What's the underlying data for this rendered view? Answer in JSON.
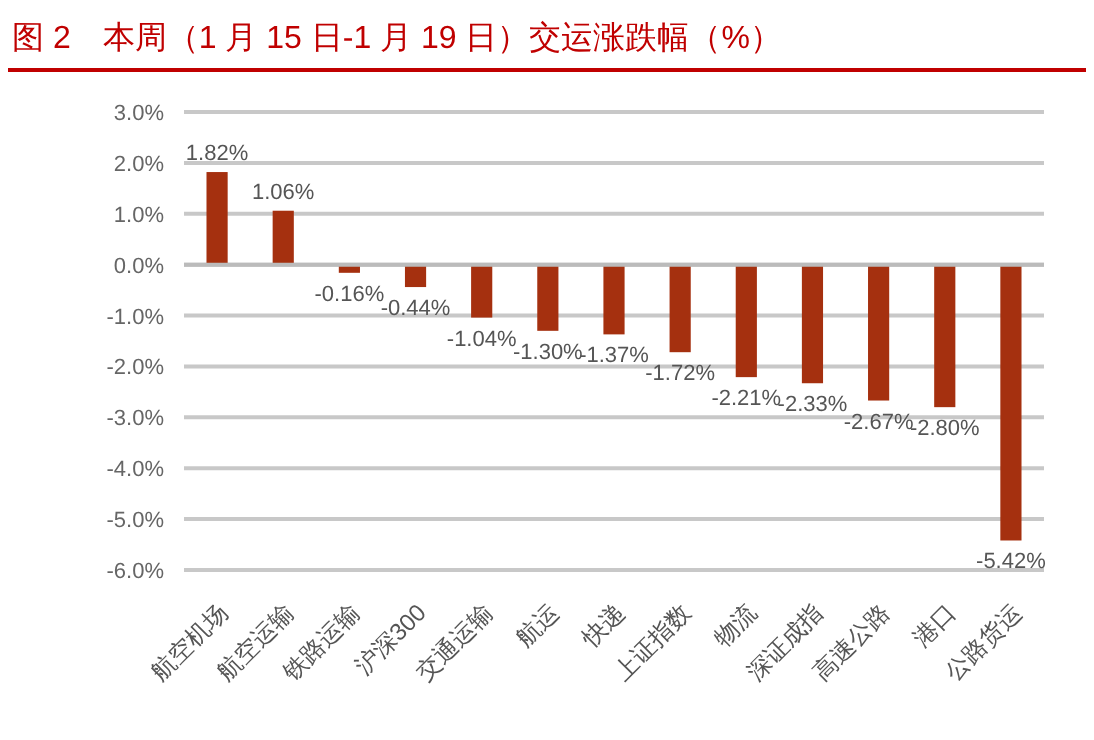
{
  "chart_data": {
    "type": "bar",
    "title": "图 2　本周（1 月 15 日-1 月 19 日）交运涨跌幅（%）",
    "categories": [
      "航空机场",
      "航空运输",
      "铁路运输",
      "沪深300",
      "交通运输",
      "航运",
      "快递",
      "上证指数",
      "物流",
      "深证成指",
      "高速公路",
      "港口",
      "公路货运"
    ],
    "values": [
      1.82,
      1.06,
      -0.16,
      -0.44,
      -1.04,
      -1.3,
      -1.37,
      -1.72,
      -2.21,
      -2.33,
      -2.67,
      -2.8,
      -5.42
    ],
    "value_labels": [
      "1.82%",
      "1.06%",
      "-0.16%",
      "-0.44%",
      "-1.04%",
      "-1.30%",
      "-1.37%",
      "-1.72%",
      "-2.21%",
      "-2.33%",
      "-2.67%",
      "-2.80%",
      "-5.42%"
    ],
    "color": "#a5300f",
    "ylim": [
      -6,
      3
    ],
    "yticks": [
      {
        "value": 3,
        "label": "3.0%"
      },
      {
        "value": 2,
        "label": "2.0%"
      },
      {
        "value": 1,
        "label": "1.0%"
      },
      {
        "value": 0,
        "label": "0.0%"
      },
      {
        "value": -1,
        "label": "-1.0%"
      },
      {
        "value": -2,
        "label": "-2.0%"
      },
      {
        "value": -3,
        "label": "-3.0%"
      },
      {
        "value": -4,
        "label": "-4.0%"
      },
      {
        "value": -5,
        "label": "-5.0%"
      },
      {
        "value": -6,
        "label": "-6.0%"
      }
    ],
    "grid": "y"
  }
}
